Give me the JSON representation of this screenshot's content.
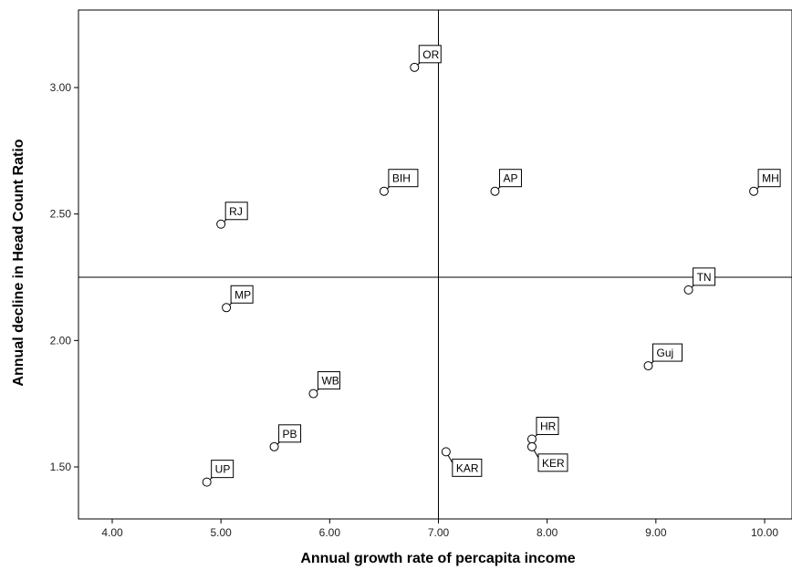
{
  "chart_data": {
    "type": "scatter",
    "title": "",
    "xlabel": "Annual growth rate of percapita income",
    "ylabel": "Annual decline in Head Count Ratio",
    "xlim": [
      3.7,
      10.25
    ],
    "ylim": [
      1.3,
      3.3
    ],
    "x_ticks": [
      4.0,
      5.0,
      6.0,
      7.0,
      8.0,
      9.0,
      10.0
    ],
    "x_tick_labels": [
      "4.00",
      "5.00",
      "6.00",
      "7.00",
      "8.00",
      "9.00",
      "10.00"
    ],
    "y_ticks": [
      1.5,
      2.0,
      2.5,
      3.0
    ],
    "y_tick_labels": [
      "1.50",
      "2.00",
      "2.50",
      "3.00"
    ],
    "reference_lines": {
      "x": 7.0,
      "y": 2.25
    },
    "grid": false,
    "legend": "none",
    "marker_color": "#ffffff",
    "marker_edge_color": "#000000",
    "points": [
      {
        "label": "OR",
        "x": 6.78,
        "y": 3.08,
        "label_pos": "above"
      },
      {
        "label": "BIH",
        "x": 6.5,
        "y": 2.59,
        "label_pos": "above"
      },
      {
        "label": "AP",
        "x": 7.52,
        "y": 2.59,
        "label_pos": "above"
      },
      {
        "label": "MH",
        "x": 9.9,
        "y": 2.59,
        "label_pos": "above"
      },
      {
        "label": "RJ",
        "x": 5.0,
        "y": 2.46,
        "label_pos": "above"
      },
      {
        "label": "TN",
        "x": 9.3,
        "y": 2.2,
        "label_pos": "above"
      },
      {
        "label": "MP",
        "x": 5.05,
        "y": 2.13,
        "label_pos": "above"
      },
      {
        "label": "Guj",
        "x": 8.93,
        "y": 1.9,
        "label_pos": "above"
      },
      {
        "label": "WB",
        "x": 5.85,
        "y": 1.79,
        "label_pos": "above"
      },
      {
        "label": "HR",
        "x": 7.86,
        "y": 1.61,
        "label_pos": "above"
      },
      {
        "label": "KER",
        "x": 7.86,
        "y": 1.58,
        "label_pos": "below"
      },
      {
        "label": "PB",
        "x": 5.49,
        "y": 1.58,
        "label_pos": "above"
      },
      {
        "label": "KAR",
        "x": 7.07,
        "y": 1.56,
        "label_pos": "below"
      },
      {
        "label": "UP",
        "x": 4.87,
        "y": 1.44,
        "label_pos": "above"
      }
    ]
  }
}
